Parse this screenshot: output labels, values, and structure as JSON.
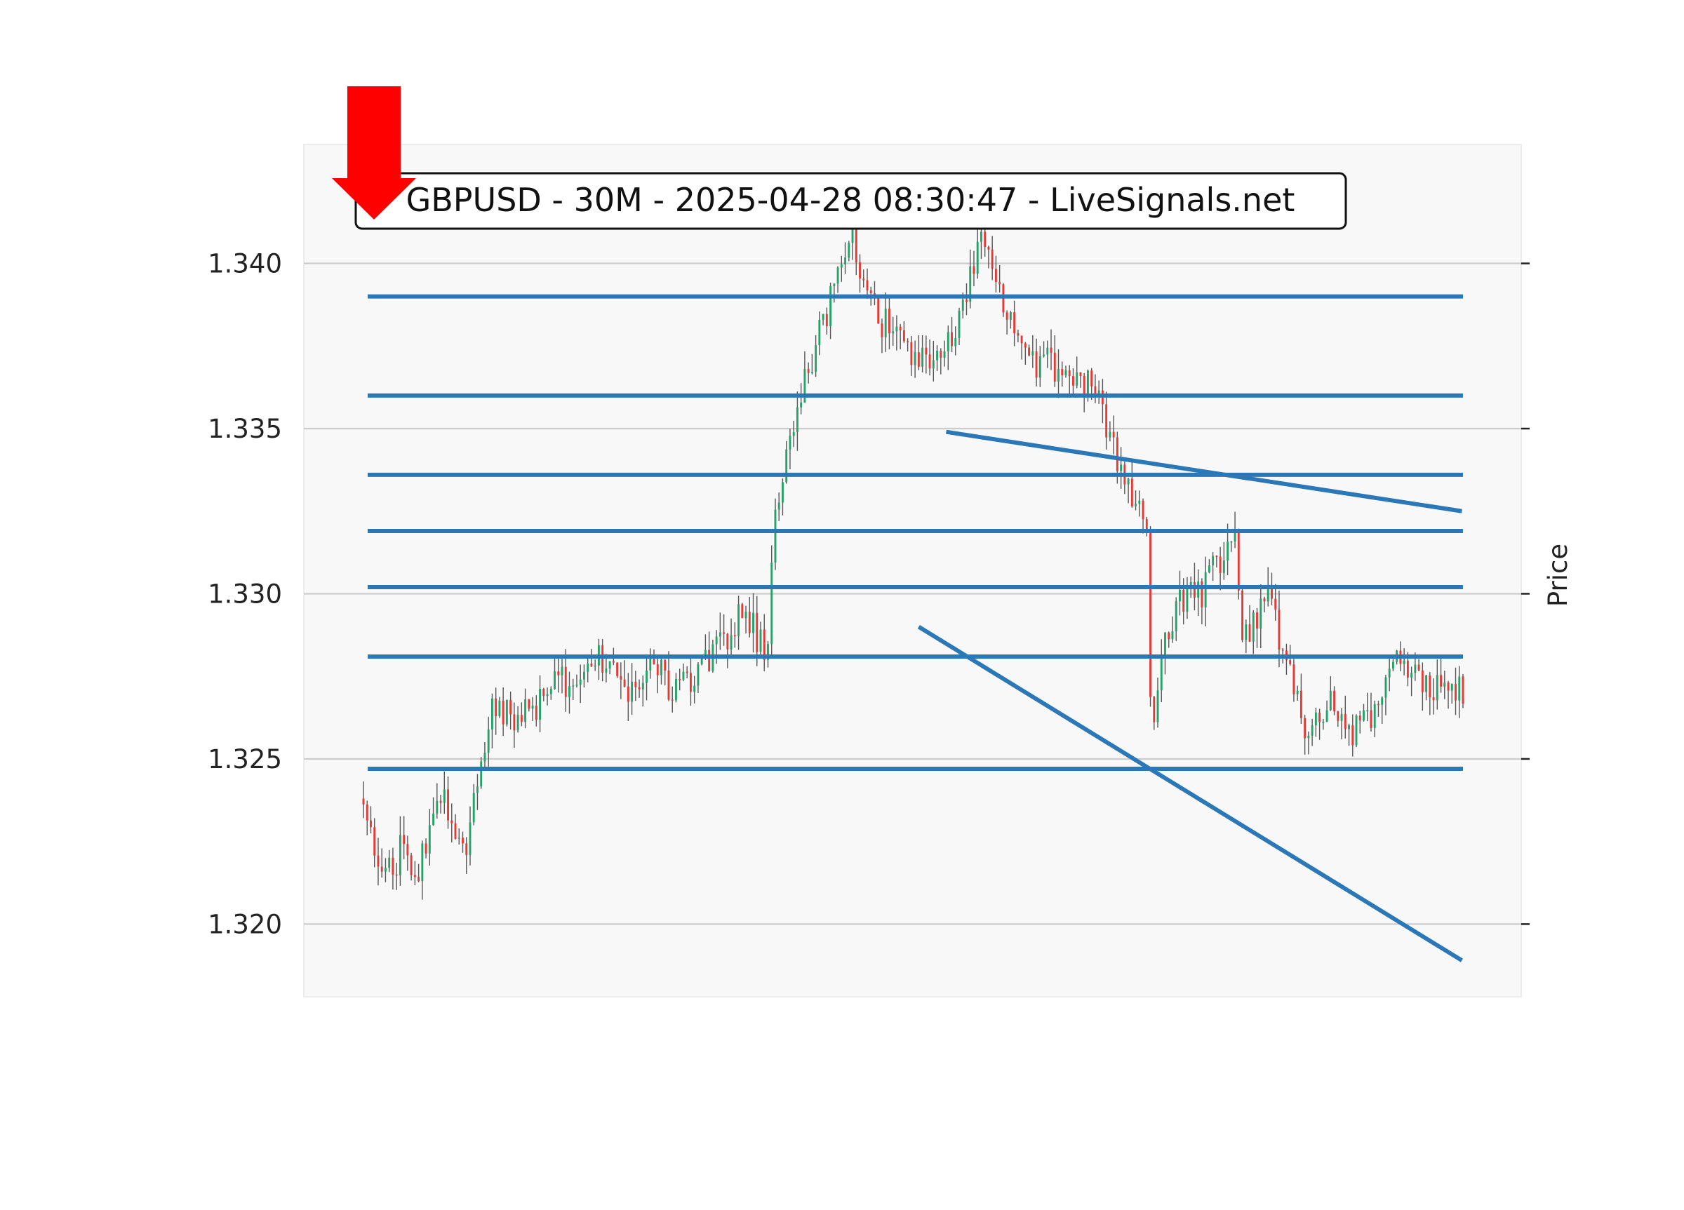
{
  "chart_data": {
    "type": "candlestick",
    "title": "GBPUSD - 30M - 2025-04-28 08:30:47 - LiveSignals.net",
    "ylabel": "Price",
    "ylim": [
      1.3178,
      1.3436
    ],
    "yticks": [
      1.32,
      1.325,
      1.33,
      1.335,
      1.34
    ],
    "ytick_labels": [
      "1.320",
      "1.325",
      "1.330",
      "1.335",
      "1.340"
    ],
    "grid": "horizontal",
    "bar_count": 300,
    "colors": {
      "up": "#26a269",
      "down": "#e53935",
      "level": "#2a78b8",
      "signal_arrow": "#ff0000",
      "panel": "#f8f8f8",
      "grid": "#cccccc"
    },
    "signal": {
      "direction": "sell",
      "icon": "down-arrow-icon"
    },
    "close_path": [
      [
        0,
        1.3235
      ],
      [
        5,
        1.3212
      ],
      [
        10,
        1.3222
      ],
      [
        14,
        1.321
      ],
      [
        20,
        1.324
      ],
      [
        28,
        1.3225
      ],
      [
        35,
        1.3265
      ],
      [
        42,
        1.3262
      ],
      [
        50,
        1.327
      ],
      [
        58,
        1.3275
      ],
      [
        62,
        1.3283
      ],
      [
        68,
        1.3275
      ],
      [
        75,
        1.327
      ],
      [
        80,
        1.328
      ],
      [
        85,
        1.327
      ],
      [
        90,
        1.3276
      ],
      [
        98,
        1.3284
      ],
      [
        104,
        1.3295
      ],
      [
        110,
        1.328
      ],
      [
        112,
        1.332
      ],
      [
        118,
        1.3355
      ],
      [
        123,
        1.3372
      ],
      [
        128,
        1.3392
      ],
      [
        133,
        1.3408
      ],
      [
        136,
        1.3395
      ],
      [
        140,
        1.3385
      ],
      [
        148,
        1.3373
      ],
      [
        155,
        1.3373
      ],
      [
        162,
        1.3378
      ],
      [
        168,
        1.3408
      ],
      [
        172,
        1.34
      ],
      [
        178,
        1.3378
      ],
      [
        184,
        1.337
      ],
      [
        190,
        1.3368
      ],
      [
        195,
        1.3365
      ],
      [
        200,
        1.336
      ],
      [
        205,
        1.3342
      ],
      [
        210,
        1.333
      ],
      [
        214,
        1.332
      ],
      [
        215,
        1.325
      ],
      [
        218,
        1.328
      ],
      [
        222,
        1.33
      ],
      [
        228,
        1.33
      ],
      [
        234,
        1.331
      ],
      [
        238,
        1.332
      ],
      [
        240,
        1.3285
      ],
      [
        246,
        1.33
      ],
      [
        252,
        1.328
      ],
      [
        258,
        1.3255
      ],
      [
        264,
        1.3268
      ],
      [
        270,
        1.3257
      ],
      [
        276,
        1.3265
      ],
      [
        282,
        1.328
      ],
      [
        290,
        1.327
      ]
    ],
    "path_x_scale": 300,
    "levels": [
      1.339,
      1.336,
      1.3336,
      1.3319,
      1.3302,
      1.3281,
      1.3247
    ],
    "trendlines": [
      {
        "from": [
          1.3349,
          0.53
        ],
        "to": [
          1.3325,
          0.999
        ]
      },
      {
        "from": [
          1.329,
          0.505
        ],
        "to": [
          1.3189,
          0.999
        ]
      }
    ]
  }
}
